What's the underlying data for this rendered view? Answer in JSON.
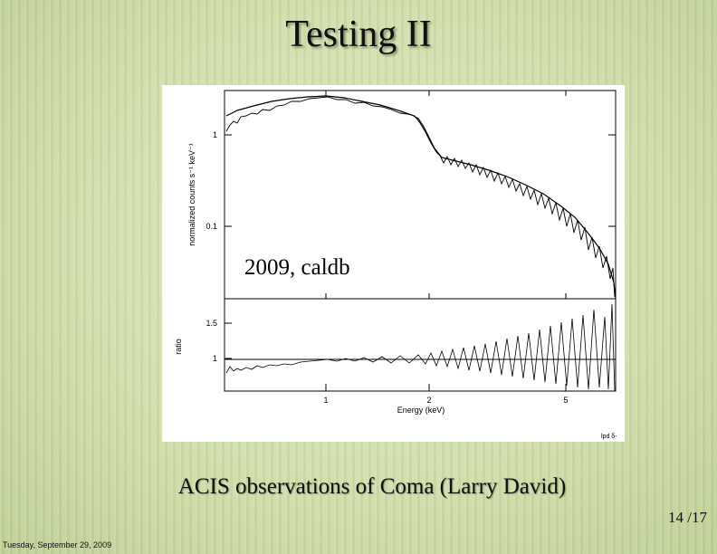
{
  "title": "Testing II",
  "figure": {
    "y_axis_label": "normalized counts s⁻¹ keV⁻¹",
    "upper_ticks": [
      "1",
      "0.1"
    ],
    "ratio_label": "ratio",
    "lower_ticks": [
      "1.5",
      "1"
    ],
    "x_ticks": [
      "1",
      "2",
      "5"
    ],
    "x_axis_label": "Energy (keV)",
    "annotation": "2009, caldb",
    "credit": "lpd δ-"
  },
  "caption": "ACIS observations of Coma (Larry David)",
  "page_number": "14 /17",
  "footer": "Tuesday, September 29, 2009"
}
